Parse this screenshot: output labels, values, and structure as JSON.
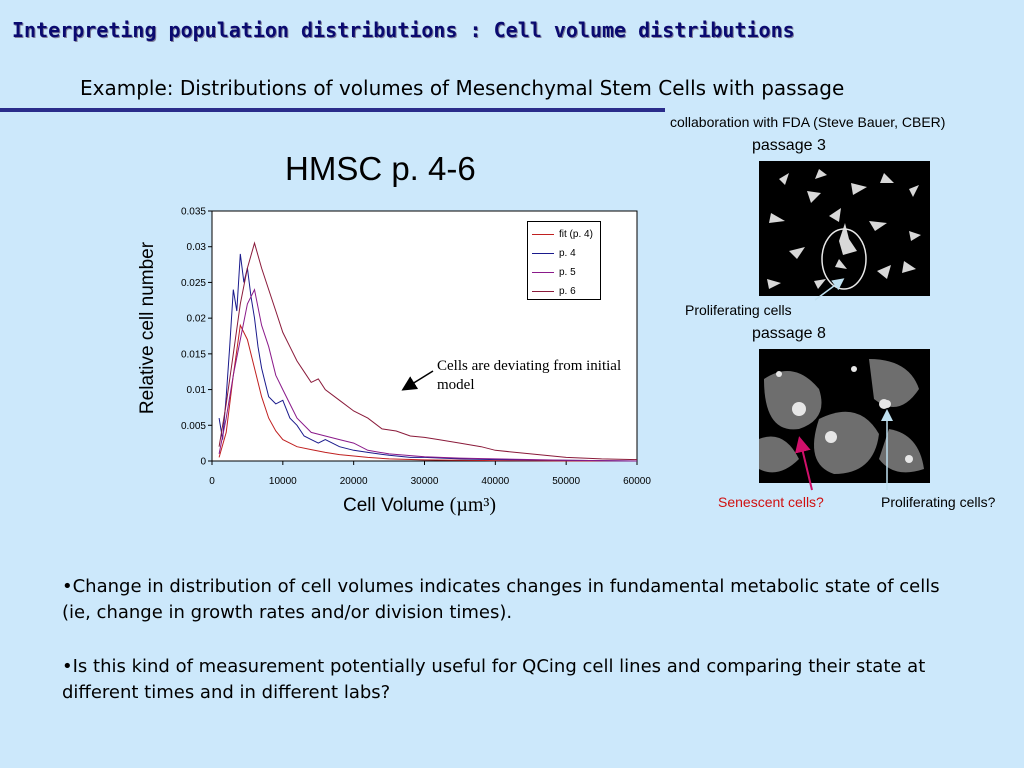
{
  "slide": {
    "title": "Interpreting population distributions : Cell volume distributions",
    "subtitle": "Example: Distributions of volumes of Mesenchymal Stem Cells with passage",
    "credit": "collaboration with FDA (Steve Bauer, CBER)",
    "bullets": [
      "•Change in distribution of cell volumes indicates changes in fundamental metabolic state of cells (ie, change in growth rates and/or division times).",
      "•Is this kind of measurement potentially useful for QCing cell lines and comparing their state at different times and in different labs?"
    ]
  },
  "chart_data": {
    "type": "line",
    "title": "HMSC p. 4-6",
    "xlabel": "Cell Volume",
    "xlabel_unit": "(µm³)",
    "ylabel": "Relative cell number",
    "xlim": [
      0,
      60000
    ],
    "ylim": [
      0,
      0.035
    ],
    "xticks": [
      0,
      10000,
      20000,
      30000,
      40000,
      50000,
      60000
    ],
    "xtick_labels": [
      "0",
      "10000",
      "20000",
      "30000",
      "40000",
      "50000",
      "60000"
    ],
    "yticks": [
      0,
      0.005,
      0.01,
      0.015,
      0.02,
      0.025,
      0.03,
      0.035
    ],
    "ytick_labels": [
      "0",
      "0.005",
      "0.01",
      "0.015",
      "0.02",
      "0.025",
      "0.03",
      "0.035"
    ],
    "grid": false,
    "legend_position": "top-right",
    "annotation": "Cells are deviating from initial model",
    "series": [
      {
        "name": "fit (p. 4)",
        "color": "#c02020",
        "x": [
          1000,
          2000,
          3000,
          4000,
          5000,
          6000,
          7000,
          8000,
          9000,
          10000,
          12000,
          14000,
          16000,
          18000,
          20000,
          22000,
          25000,
          30000,
          35000,
          40000,
          50000,
          60000
        ],
        "y": [
          0.0005,
          0.004,
          0.012,
          0.019,
          0.017,
          0.013,
          0.009,
          0.006,
          0.0042,
          0.003,
          0.002,
          0.0016,
          0.0012,
          0.0009,
          0.0007,
          0.0005,
          0.0003,
          0.00015,
          0.0001,
          5e-05,
          0,
          0
        ]
      },
      {
        "name": "p. 4",
        "color": "#1a1a8c",
        "x": [
          1000,
          1500,
          2000,
          2500,
          3000,
          3500,
          4000,
          4500,
          5000,
          5500,
          6000,
          6500,
          7000,
          7500,
          8000,
          9000,
          10000,
          11000,
          12000,
          13000,
          14000,
          15000,
          16000,
          18000,
          20000,
          22000,
          25000,
          28000,
          30000,
          35000,
          40000,
          50000,
          60000
        ],
        "y": [
          0.006,
          0.003,
          0.009,
          0.016,
          0.024,
          0.021,
          0.029,
          0.025,
          0.027,
          0.023,
          0.02,
          0.016,
          0.013,
          0.011,
          0.009,
          0.008,
          0.0085,
          0.006,
          0.005,
          0.0035,
          0.003,
          0.0025,
          0.003,
          0.002,
          0.0015,
          0.0012,
          0.0008,
          0.0005,
          0.0005,
          0.0003,
          0.0002,
          0.0001,
          0
        ]
      },
      {
        "name": "p. 5",
        "color": "#8a1a8a",
        "x": [
          1000,
          2000,
          3000,
          4000,
          5000,
          6000,
          7000,
          8000,
          9000,
          10000,
          11000,
          12000,
          14000,
          16000,
          18000,
          20000,
          22000,
          25000,
          30000,
          35000,
          40000,
          50000,
          60000
        ],
        "y": [
          0.001,
          0.006,
          0.012,
          0.017,
          0.022,
          0.024,
          0.019,
          0.016,
          0.012,
          0.01,
          0.008,
          0.006,
          0.004,
          0.0035,
          0.003,
          0.0025,
          0.0015,
          0.001,
          0.0006,
          0.0004,
          0.0003,
          0.0001,
          0
        ]
      },
      {
        "name": "p. 6",
        "color": "#8a1a3a",
        "x": [
          1000,
          2000,
          3000,
          4000,
          5000,
          6000,
          7000,
          8000,
          9000,
          10000,
          11000,
          12000,
          13000,
          14000,
          15000,
          16000,
          18000,
          20000,
          22000,
          24000,
          26000,
          28000,
          30000,
          32000,
          35000,
          38000,
          40000,
          45000,
          50000,
          55000,
          60000
        ],
        "y": [
          0.002,
          0.008,
          0.015,
          0.022,
          0.027,
          0.0305,
          0.027,
          0.024,
          0.021,
          0.018,
          0.016,
          0.014,
          0.0125,
          0.011,
          0.0115,
          0.01,
          0.0085,
          0.007,
          0.006,
          0.0045,
          0.0042,
          0.0035,
          0.0033,
          0.003,
          0.0025,
          0.002,
          0.0015,
          0.001,
          0.0005,
          0.0003,
          0.0002
        ]
      }
    ]
  },
  "micrographs": {
    "top_caption": "passage 3",
    "top_label": "Proliferating cells",
    "bottom_caption": "passage 8",
    "senescent_label": "Senescent cells?",
    "senescent_color": "#d01010",
    "proliferating_label": "Proliferating cells?"
  }
}
